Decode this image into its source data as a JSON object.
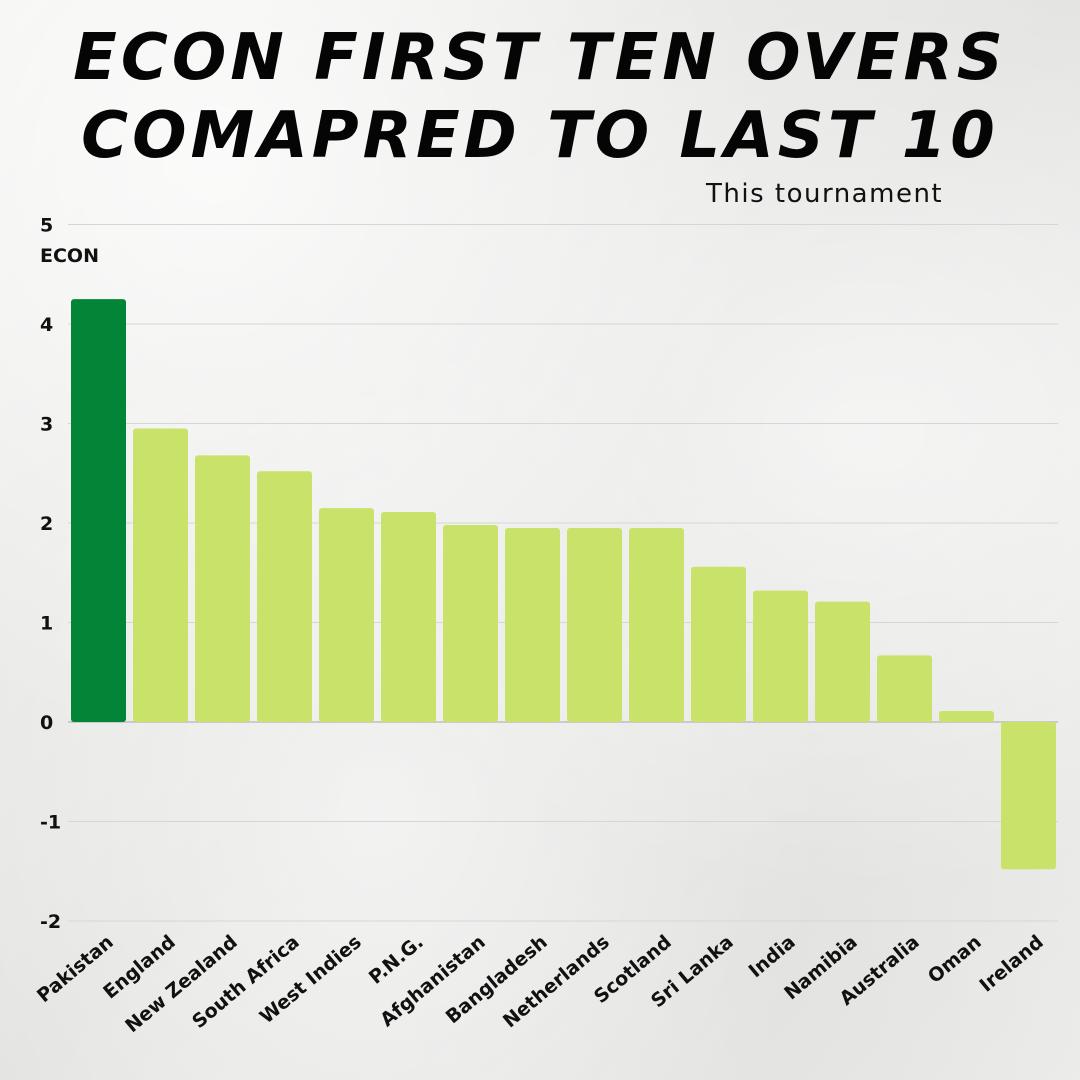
{
  "chart_data": {
    "type": "bar",
    "title": "ECON FIRST TEN OVERS COMAPRED TO LAST 10",
    "title_lines": [
      "ECON FIRST TEN OVERS",
      "COMAPRED TO LAST 10"
    ],
    "subtitle": "This tournament",
    "ylabel": "ECON",
    "xlabel": "",
    "ylim": [
      -2,
      5
    ],
    "yticks": [
      5,
      4,
      3,
      2,
      1,
      0,
      -1,
      -2
    ],
    "grid": true,
    "categories": [
      "Pakistan",
      "England",
      "New Zealand",
      "South Africa",
      "West Indies",
      "P.N.G.",
      "Afghanistan",
      "Bangladesh",
      "Netherlands",
      "Scotland",
      "Sri Lanka",
      "India",
      "Namibia",
      "Australia",
      "Oman",
      "Ireland"
    ],
    "values": [
      4.25,
      2.95,
      2.68,
      2.52,
      2.15,
      2.11,
      1.98,
      1.95,
      1.95,
      1.95,
      1.56,
      1.32,
      1.21,
      0.67,
      0.11,
      -1.48
    ],
    "colors": {
      "highlight": "#038537",
      "default": "#c9e26a",
      "highlight_categories": [
        "Pakistan"
      ]
    }
  }
}
